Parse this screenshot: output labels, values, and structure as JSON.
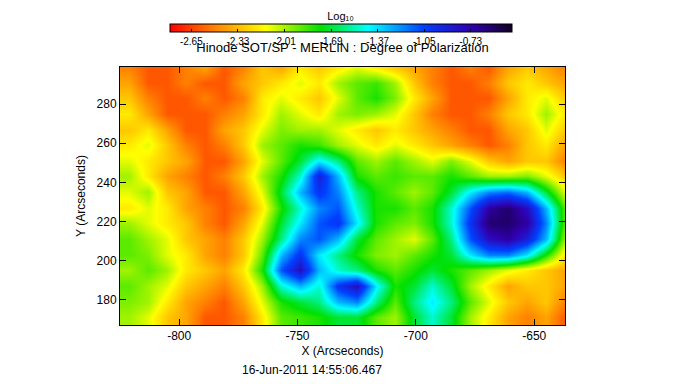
{
  "chart_data": {
    "type": "heatmap",
    "title": "Hinode SOT/SP - MERLIN : Degree of Polarization",
    "x_label": "X (Arcseconds)",
    "y_label": "Y (Arcseconds)",
    "annotations": [
      "16-Jun-2011 14:55:06.467"
    ],
    "x": [
      -821,
      -813,
      -805,
      -797,
      -789,
      -781,
      -773,
      -765,
      -757,
      -749,
      -741,
      -733,
      -725,
      -717,
      -709,
      -701,
      -693,
      -685,
      -677,
      -669,
      -661,
      -653,
      -645,
      -637
    ],
    "y": [
      171,
      179,
      187,
      195,
      203,
      211,
      219,
      227,
      235,
      243,
      251,
      259,
      267,
      275,
      283,
      291,
      299
    ],
    "z": [
      [
        -2.0,
        -2.1,
        -2.3,
        -2.4,
        -2.6,
        -2.6,
        -2.5,
        -2.2,
        -1.9,
        -1.85,
        -1.8,
        -1.7,
        -1.7,
        -1.9,
        -2.0,
        -1.7,
        -1.5,
        -1.7,
        -2.0,
        -2.2,
        -2.4,
        -2.5,
        -2.4,
        -2.6
      ],
      [
        -1.95,
        -2.0,
        -2.2,
        -2.4,
        -2.5,
        -2.6,
        -2.4,
        -2.1,
        -1.8,
        -1.7,
        -1.6,
        -1.3,
        -1.2,
        -1.6,
        -1.9,
        -1.6,
        -1.4,
        -1.6,
        -1.9,
        -2.1,
        -2.3,
        -2.4,
        -2.3,
        -2.5
      ],
      [
        -1.9,
        -2.0,
        -2.1,
        -2.3,
        -2.4,
        -2.5,
        -2.3,
        -2.0,
        -1.5,
        -1.3,
        -1.5,
        -1.0,
        -0.8,
        -1.4,
        -1.8,
        -1.7,
        -1.5,
        -1.7,
        -2.0,
        -2.2,
        -2.4,
        -2.3,
        -2.3,
        -2.4
      ],
      [
        -2.0,
        -1.9,
        -2.0,
        -2.2,
        -2.3,
        -2.4,
        -2.2,
        -1.8,
        -1.1,
        -0.8,
        -1.3,
        -1.5,
        -1.6,
        -1.8,
        -1.9,
        -1.8,
        -1.7,
        -1.8,
        -1.9,
        -2.0,
        -2.1,
        -2.2,
        -2.3,
        -2.4
      ],
      [
        -1.9,
        -1.95,
        -2.1,
        -2.2,
        -2.4,
        -2.5,
        -2.3,
        -1.9,
        -1.3,
        -1.0,
        -1.4,
        -1.6,
        -1.8,
        -1.95,
        -2.0,
        -1.9,
        -1.8,
        -1.7,
        -1.4,
        -1.2,
        -1.2,
        -1.4,
        -1.8,
        -2.2
      ],
      [
        -1.9,
        -2.0,
        -2.1,
        -2.3,
        -2.4,
        -2.5,
        -2.3,
        -2.0,
        -1.6,
        -1.2,
        -1.1,
        -1.3,
        -1.7,
        -1.9,
        -2.0,
        -2.1,
        -1.9,
        -1.6,
        -1.1,
        -0.8,
        -0.7,
        -0.9,
        -1.3,
        -2.0
      ],
      [
        -2.0,
        -2.1,
        -2.2,
        -2.3,
        -2.5,
        -2.6,
        -2.4,
        -2.1,
        -1.7,
        -1.4,
        -1.1,
        -1.0,
        -1.4,
        -1.8,
        -1.9,
        -1.95,
        -1.8,
        -1.5,
        -1.0,
        -0.6,
        -0.6,
        -0.7,
        -1.2,
        -1.9
      ],
      [
        -2.2,
        -2.1,
        -2.2,
        -2.4,
        -2.5,
        -2.6,
        -2.5,
        -2.2,
        -1.8,
        -1.5,
        -1.2,
        -1.1,
        -1.5,
        -1.8,
        -1.8,
        -1.9,
        -1.8,
        -1.5,
        -1.1,
        -0.7,
        -0.6,
        -0.8,
        -1.3,
        -1.9
      ],
      [
        -2.1,
        -2.0,
        -2.3,
        -2.4,
        -2.6,
        -2.6,
        -2.4,
        -2.1,
        -1.7,
        -1.3,
        -1.0,
        -1.2,
        -1.6,
        -1.8,
        -1.9,
        -2.0,
        -1.9,
        -1.7,
        -1.4,
        -1.2,
        -1.15,
        -1.3,
        -1.7,
        -2.1
      ],
      [
        -2.0,
        -2.2,
        -2.4,
        -2.5,
        -2.6,
        -2.5,
        -2.3,
        -2.0,
        -1.8,
        -1.5,
        -0.9,
        -1.3,
        -1.8,
        -1.9,
        -1.85,
        -1.9,
        -1.9,
        -1.8,
        -1.9,
        -2.0,
        -2.0,
        -1.95,
        -2.1,
        -2.3
      ],
      [
        -2.1,
        -2.2,
        -2.3,
        -2.4,
        -2.6,
        -2.6,
        -2.4,
        -2.1,
        -1.9,
        -1.7,
        -1.4,
        -1.6,
        -1.9,
        -2.0,
        -1.9,
        -2.0,
        -2.1,
        -1.95,
        -2.1,
        -2.3,
        -2.4,
        -2.3,
        -2.3,
        -2.5
      ],
      [
        -2.2,
        -2.1,
        -2.3,
        -2.5,
        -2.6,
        -2.5,
        -2.3,
        -2.0,
        -1.9,
        -1.8,
        -1.85,
        -2.0,
        -2.1,
        -2.2,
        -2.1,
        -2.2,
        -2.3,
        -2.4,
        -2.5,
        -2.6,
        -2.5,
        -2.3,
        -2.2,
        -2.4
      ],
      [
        -2.3,
        -2.2,
        -2.4,
        -2.6,
        -2.6,
        -2.4,
        -2.3,
        -2.1,
        -1.95,
        -2.0,
        -2.0,
        -2.1,
        -2.2,
        -2.3,
        -2.2,
        -2.3,
        -2.4,
        -2.5,
        -2.6,
        -2.6,
        -2.4,
        -2.3,
        -2.1,
        -2.3
      ],
      [
        -2.2,
        -2.4,
        -2.6,
        -2.6,
        -2.6,
        -2.5,
        -2.4,
        -2.2,
        -2.0,
        -2.1,
        -2.2,
        -2.0,
        -1.95,
        -2.0,
        -2.1,
        -2.3,
        -2.5,
        -2.6,
        -2.6,
        -2.5,
        -2.3,
        -2.2,
        -2.0,
        -2.2
      ],
      [
        -2.3,
        -2.5,
        -2.6,
        -2.6,
        -2.5,
        -2.6,
        -2.5,
        -2.2,
        -2.1,
        -2.2,
        -2.3,
        -2.1,
        -1.9,
        -1.8,
        -1.95,
        -2.2,
        -2.4,
        -2.6,
        -2.6,
        -2.6,
        -2.4,
        -2.2,
        -2.1,
        -2.3
      ],
      [
        -2.4,
        -2.6,
        -2.6,
        -2.5,
        -2.6,
        -2.6,
        -2.4,
        -2.3,
        -2.2,
        -2.1,
        -2.2,
        -2.0,
        -1.9,
        -1.85,
        -2.0,
        -2.3,
        -2.5,
        -2.6,
        -2.6,
        -2.5,
        -2.3,
        -2.2,
        -2.3,
        -2.4
      ],
      [
        -2.5,
        -2.6,
        -2.6,
        -2.5,
        -2.4,
        -2.6,
        -2.5,
        -2.3,
        -2.4,
        -2.2,
        -2.3,
        -2.2,
        -2.1,
        -2.2,
        -2.3,
        -2.4,
        -2.5,
        -2.6,
        -2.5,
        -2.6,
        -2.4,
        -2.3,
        -2.4,
        -2.5
      ]
    ],
    "xlim": [
      -825,
      -637
    ],
    "ylim": [
      167,
      299
    ],
    "xticks": [
      -800,
      -750,
      -700,
      -650
    ],
    "yticks": [
      180,
      200,
      220,
      240,
      260,
      280
    ],
    "colorbar": {
      "title": "Log₁₀",
      "range": [
        -2.8,
        -0.45
      ],
      "ticks": [
        -2.65,
        -2.33,
        -2.01,
        -1.69,
        -1.37,
        -1.05,
        -0.73
      ]
    }
  }
}
